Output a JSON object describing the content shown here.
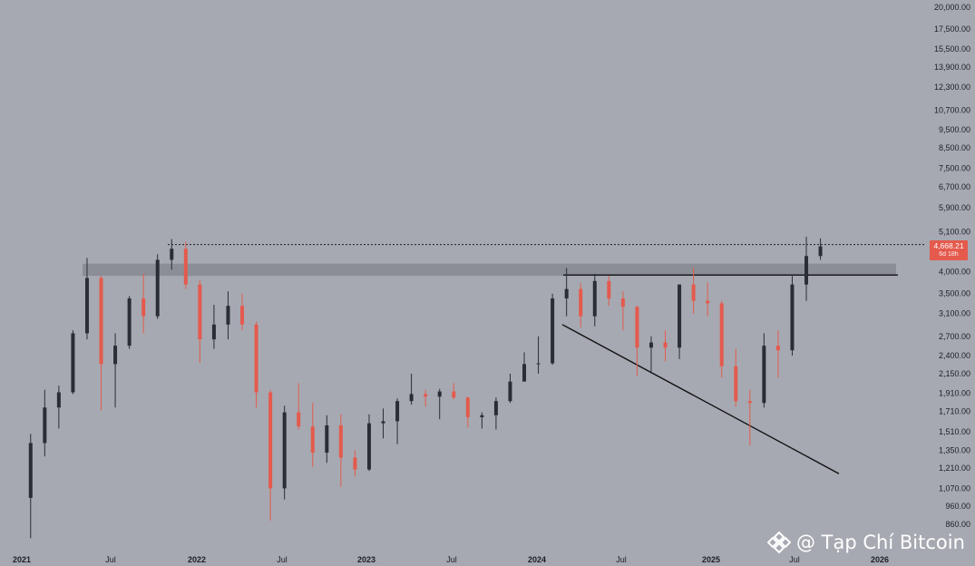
{
  "chart_data": {
    "type": "candlestick",
    "scale": "log",
    "ylim": [
      790,
      20500
    ],
    "y_ticks": [
      "20,000.00",
      "17,500.00",
      "15,500.00",
      "13,900.00",
      "12,300.00",
      "10,700.00",
      "9,500.00",
      "8,500.00",
      "7,500.00",
      "6,700.00",
      "5,900.00",
      "5,100.00",
      "4,000.00",
      "3,500.00",
      "3,100.00",
      "2,700.00",
      "2,400.00",
      "2,150.00",
      "1,910.00",
      "1,710.00",
      "1,510.00",
      "1,350.00",
      "1,210.00",
      "1,070.00",
      "960.00",
      "860.00"
    ],
    "x_ticks": [
      "2021",
      "Jul",
      "2022",
      "Jul",
      "2023",
      "Jul",
      "2024",
      "Jul",
      "2025",
      "Jul",
      "2026"
    ],
    "current_price": "4,668.21",
    "current_price_sub": "6d 18h",
    "colors": {
      "up": "#2a2d35",
      "down": "#e45a4d",
      "background": "#a6a9b1"
    },
    "resistance_zone": [
      3900,
      4200
    ],
    "neckline": 3920,
    "previous_high_dotted": 4720,
    "trendline": {
      "from": [
        "2024-03",
        2900
      ],
      "to": [
        "2025-11",
        1170
      ]
    },
    "series": [
      {
        "t": "2021-01",
        "o": 1010,
        "h": 1490,
        "l": 790,
        "c": 1410
      },
      {
        "t": "2021-02",
        "o": 1410,
        "h": 1950,
        "l": 1300,
        "c": 1750
      },
      {
        "t": "2021-03",
        "o": 1750,
        "h": 2000,
        "l": 1540,
        "c": 1920
      },
      {
        "t": "2021-04",
        "o": 1920,
        "h": 2800,
        "l": 1900,
        "c": 2750
      },
      {
        "t": "2021-05",
        "o": 2750,
        "h": 4350,
        "l": 2650,
        "c": 3850
      },
      {
        "t": "2021-06",
        "o": 3850,
        "h": 3900,
        "l": 1720,
        "c": 2280
      },
      {
        "t": "2021-07",
        "o": 2280,
        "h": 2750,
        "l": 1750,
        "c": 2550
      },
      {
        "t": "2021-08",
        "o": 2550,
        "h": 3450,
        "l": 2500,
        "c": 3400
      },
      {
        "t": "2021-09",
        "o": 3400,
        "h": 3950,
        "l": 2750,
        "c": 3050
      },
      {
        "t": "2021-10",
        "o": 3050,
        "h": 4450,
        "l": 3000,
        "c": 4300
      },
      {
        "t": "2021-11",
        "o": 4300,
        "h": 4880,
        "l": 4050,
        "c": 4600
      },
      {
        "t": "2021-12",
        "o": 4600,
        "h": 4800,
        "l": 3600,
        "c": 3700
      },
      {
        "t": "2022-01",
        "o": 3700,
        "h": 3800,
        "l": 2300,
        "c": 2650
      },
      {
        "t": "2022-02",
        "o": 2650,
        "h": 3270,
        "l": 2500,
        "c": 2900
      },
      {
        "t": "2022-03",
        "o": 2900,
        "h": 3550,
        "l": 2650,
        "c": 3250
      },
      {
        "t": "2022-04",
        "o": 3250,
        "h": 3500,
        "l": 2800,
        "c": 2900
      },
      {
        "t": "2022-05",
        "o": 2900,
        "h": 2950,
        "l": 1750,
        "c": 1920
      },
      {
        "t": "2022-06",
        "o": 1920,
        "h": 1950,
        "l": 880,
        "c": 1070
      },
      {
        "t": "2022-07",
        "o": 1070,
        "h": 1770,
        "l": 1000,
        "c": 1700
      },
      {
        "t": "2022-08",
        "o": 1700,
        "h": 2030,
        "l": 1530,
        "c": 1560
      },
      {
        "t": "2022-09",
        "o": 1560,
        "h": 1800,
        "l": 1220,
        "c": 1330
      },
      {
        "t": "2022-10",
        "o": 1330,
        "h": 1670,
        "l": 1250,
        "c": 1570
      },
      {
        "t": "2022-11",
        "o": 1570,
        "h": 1680,
        "l": 1080,
        "c": 1290
      },
      {
        "t": "2022-12",
        "o": 1290,
        "h": 1350,
        "l": 1150,
        "c": 1200
      },
      {
        "t": "2023-01",
        "o": 1200,
        "h": 1680,
        "l": 1190,
        "c": 1590
      },
      {
        "t": "2023-02",
        "o": 1590,
        "h": 1740,
        "l": 1450,
        "c": 1610
      },
      {
        "t": "2023-03",
        "o": 1610,
        "h": 1850,
        "l": 1400,
        "c": 1820
      },
      {
        "t": "2023-04",
        "o": 1820,
        "h": 2150,
        "l": 1780,
        "c": 1900
      },
      {
        "t": "2023-05",
        "o": 1900,
        "h": 1950,
        "l": 1760,
        "c": 1870
      },
      {
        "t": "2023-06",
        "o": 1870,
        "h": 1960,
        "l": 1630,
        "c": 1930
      },
      {
        "t": "2023-07",
        "o": 1930,
        "h": 2030,
        "l": 1840,
        "c": 1860
      },
      {
        "t": "2023-08",
        "o": 1860,
        "h": 1870,
        "l": 1550,
        "c": 1650
      },
      {
        "t": "2023-09",
        "o": 1650,
        "h": 1700,
        "l": 1540,
        "c": 1670
      },
      {
        "t": "2023-10",
        "o": 1670,
        "h": 1860,
        "l": 1530,
        "c": 1820
      },
      {
        "t": "2023-11",
        "o": 1820,
        "h": 2150,
        "l": 1800,
        "c": 2050
      },
      {
        "t": "2023-12",
        "o": 2050,
        "h": 2450,
        "l": 2050,
        "c": 2280
      },
      {
        "t": "2024-01",
        "o": 2280,
        "h": 2700,
        "l": 2150,
        "c": 2290
      },
      {
        "t": "2024-02",
        "o": 2290,
        "h": 3500,
        "l": 2270,
        "c": 3400
      },
      {
        "t": "2024-03",
        "o": 3400,
        "h": 4090,
        "l": 3050,
        "c": 3600
      },
      {
        "t": "2024-04",
        "o": 3600,
        "h": 3730,
        "l": 2850,
        "c": 3050
      },
      {
        "t": "2024-05",
        "o": 3050,
        "h": 3950,
        "l": 2870,
        "c": 3780
      },
      {
        "t": "2024-06",
        "o": 3780,
        "h": 3900,
        "l": 3250,
        "c": 3400
      },
      {
        "t": "2024-07",
        "o": 3400,
        "h": 3550,
        "l": 2800,
        "c": 3230
      },
      {
        "t": "2024-08",
        "o": 3230,
        "h": 3250,
        "l": 2120,
        "c": 2520
      },
      {
        "t": "2024-09",
        "o": 2520,
        "h": 2700,
        "l": 2150,
        "c": 2600
      },
      {
        "t": "2024-10",
        "o": 2600,
        "h": 2800,
        "l": 2320,
        "c": 2520
      },
      {
        "t": "2024-11",
        "o": 2520,
        "h": 3700,
        "l": 2350,
        "c": 3700
      },
      {
        "t": "2024-12",
        "o": 3700,
        "h": 4100,
        "l": 3100,
        "c": 3350
      },
      {
        "t": "2025-01",
        "o": 3350,
        "h": 3750,
        "l": 3050,
        "c": 3300
      },
      {
        "t": "2025-02",
        "o": 3300,
        "h": 3350,
        "l": 2100,
        "c": 2250
      },
      {
        "t": "2025-03",
        "o": 2250,
        "h": 2500,
        "l": 1760,
        "c": 1820
      },
      {
        "t": "2025-04",
        "o": 1820,
        "h": 1950,
        "l": 1390,
        "c": 1800
      },
      {
        "t": "2025-05",
        "o": 1800,
        "h": 2750,
        "l": 1750,
        "c": 2550
      },
      {
        "t": "2025-06",
        "o": 2550,
        "h": 2800,
        "l": 2100,
        "c": 2480
      },
      {
        "t": "2025-07",
        "o": 2480,
        "h": 3900,
        "l": 2400,
        "c": 3700
      },
      {
        "t": "2025-08",
        "o": 3700,
        "h": 4950,
        "l": 3350,
        "c": 4400
      },
      {
        "t": "2025-09",
        "o": 4400,
        "h": 4900,
        "l": 4300,
        "c": 4668
      }
    ]
  },
  "watermark": {
    "text": "@ Tạp Chí Bitcoin"
  }
}
